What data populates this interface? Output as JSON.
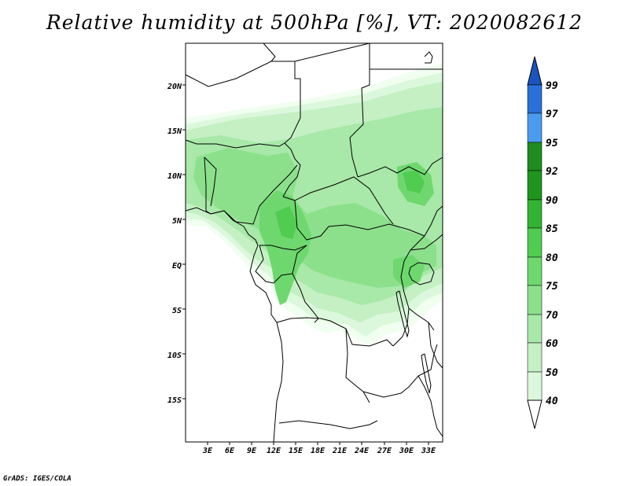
{
  "title": "Relative humidity at 500hPa [%], VT: 2020082612",
  "footer": "GrADS: IGES/COLA",
  "map": {
    "lon_range": [
      0,
      35
    ],
    "lat_range": [
      -20,
      25
    ],
    "lat_ticks": [
      "20N",
      "15N",
      "10N",
      "5N",
      "EQ",
      "5S",
      "10S",
      "15S"
    ],
    "lon_ticks": [
      "3E",
      "6E",
      "9E",
      "12E",
      "15E",
      "18E",
      "21E",
      "24E",
      "27E",
      "30E",
      "33E"
    ],
    "field": "Relative humidity at 500hPa",
    "boundary_color": "#000000"
  },
  "colorbar": {
    "levels": [
      "40",
      "50",
      "60",
      "70",
      "75",
      "80",
      "85",
      "90",
      "92",
      "95",
      "97",
      "99"
    ],
    "colors": [
      "#f0fff0",
      "#dcf8dc",
      "#c4f0c4",
      "#a8e8a8",
      "#8ce08c",
      "#6ed86e",
      "#50cc50",
      "#32b432",
      "#1e961e",
      "#1e8c1e",
      "#4a9cf0",
      "#2a70d8",
      "#1a54c0"
    ],
    "min_arrow_color": "#ffffff",
    "max_arrow_color": "#1a54c0"
  }
}
